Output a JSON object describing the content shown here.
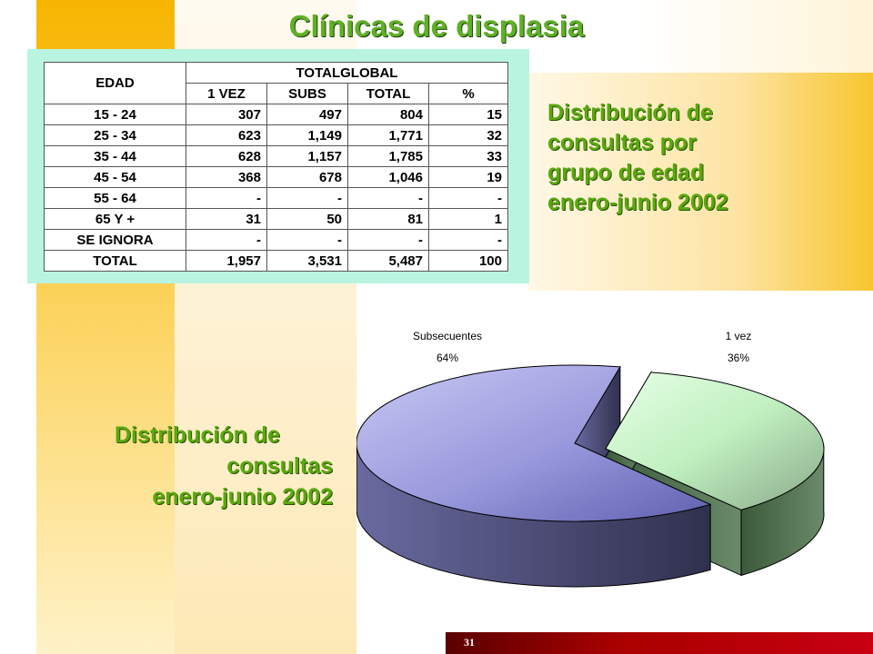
{
  "title": "Clínicas de displasia",
  "table": {
    "header_edad": "EDAD",
    "header_group": "TOTALGLOBAL",
    "subheaders": [
      "1 VEZ",
      "SUBS",
      "TOTAL",
      "%"
    ],
    "rows": [
      {
        "edad": "15 - 24",
        "vez": "307",
        "subs": "497",
        "total": "804",
        "pct": "15"
      },
      {
        "edad": "25 - 34",
        "vez": "623",
        "subs": "1,149",
        "total": "1,771",
        "pct": "32"
      },
      {
        "edad": "35 - 44",
        "vez": "628",
        "subs": "1,157",
        "total": "1,785",
        "pct": "33"
      },
      {
        "edad": "45 - 54",
        "vez": "368",
        "subs": "678",
        "total": "1,046",
        "pct": "19"
      },
      {
        "edad": "55 - 64",
        "vez": "-",
        "subs": "-",
        "total": "-",
        "pct": "-"
      },
      {
        "edad": "65 Y +",
        "vez": "31",
        "subs": "50",
        "total": "81",
        "pct": "1"
      },
      {
        "edad": "SE IGNORA",
        "vez": "-",
        "subs": "-",
        "total": "-",
        "pct": "-"
      },
      {
        "edad": "TOTAL",
        "vez": "1,957",
        "subs": "3,531",
        "total": "5,487",
        "pct": "100"
      }
    ]
  },
  "side_title": [
    "Distribución de",
    "consultas por",
    "grupo de edad",
    "enero-junio 2002"
  ],
  "bottom_title": [
    "Distribución de",
    "consultas",
    "enero-junio 2002"
  ],
  "chart_data": {
    "type": "pie",
    "style": "3d-exploded",
    "slices": [
      {
        "label": "Subsecuentes",
        "pct_label": "64%",
        "value": 64,
        "color": "#9090d8"
      },
      {
        "label": "1 vez",
        "pct_label": "36%",
        "value": 36,
        "color": "#c8f4c8"
      }
    ]
  },
  "page_number": "31",
  "colors": {
    "title": "#4b8f1c",
    "subtitle": "#5aa80f",
    "table_bg": "#b9f4e0",
    "footer": "#a80000"
  }
}
